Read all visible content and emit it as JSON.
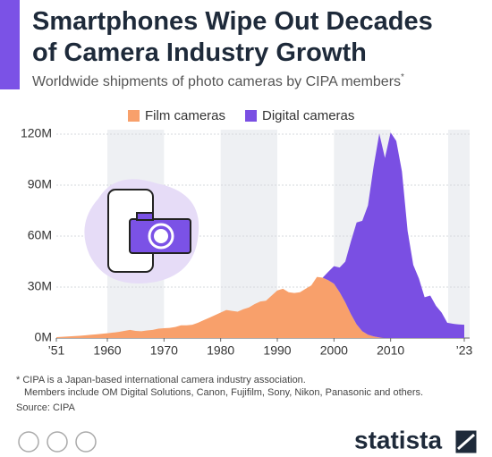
{
  "chart_data": {
    "type": "stacked_area",
    "title_lines": [
      "Smartphones Wipe Out Decades",
      "of Camera Industry Growth"
    ],
    "subtitle": "Worldwide shipments of photo cameras by CIPA members",
    "subtitle_mark": "*",
    "x": [
      1951,
      1952,
      1953,
      1954,
      1955,
      1956,
      1957,
      1958,
      1959,
      1960,
      1961,
      1962,
      1963,
      1964,
      1965,
      1966,
      1967,
      1968,
      1969,
      1970,
      1971,
      1972,
      1973,
      1974,
      1975,
      1976,
      1977,
      1978,
      1979,
      1980,
      1981,
      1982,
      1983,
      1984,
      1985,
      1986,
      1987,
      1988,
      1989,
      1990,
      1991,
      1992,
      1993,
      1994,
      1995,
      1996,
      1997,
      1998,
      1999,
      2000,
      2001,
      2002,
      2003,
      2004,
      2005,
      2006,
      2007,
      2008,
      2009,
      2010,
      2011,
      2012,
      2013,
      2014,
      2015,
      2016,
      2017,
      2018,
      2019,
      2020,
      2021,
      2022,
      2023
    ],
    "series": [
      {
        "name": "Film cameras",
        "color": "#f8a06b",
        "values": [
          0.5,
          0.7,
          0.9,
          1.1,
          1.3,
          1.6,
          1.9,
          2.2,
          2.5,
          2.8,
          3.2,
          3.6,
          4.2,
          4.8,
          4.2,
          4.0,
          4.5,
          4.8,
          5.5,
          5.8,
          6.0,
          6.5,
          7.5,
          7.5,
          7.8,
          9,
          10.5,
          12,
          13.5,
          15,
          16.5,
          16,
          15.5,
          17,
          18,
          20,
          21.5,
          22,
          25,
          28,
          29,
          27,
          26.5,
          27,
          29,
          31,
          36,
          35.5,
          34,
          32,
          27,
          21,
          14,
          8,
          4,
          2,
          1,
          0.3,
          0,
          0,
          0,
          0,
          0,
          0,
          0,
          0,
          0,
          0,
          0,
          0,
          0,
          0,
          0
        ]
      },
      {
        "name": "Digital cameras",
        "color": "#7a4fe3",
        "values": [
          0,
          0,
          0,
          0,
          0,
          0,
          0,
          0,
          0,
          0,
          0,
          0,
          0,
          0,
          0,
          0,
          0,
          0,
          0,
          0,
          0,
          0,
          0,
          0,
          0,
          0,
          0,
          0,
          0,
          0,
          0,
          0,
          0,
          0,
          0,
          0,
          0,
          0,
          0,
          0,
          0,
          0,
          0,
          0,
          0,
          0,
          0,
          0,
          5,
          10.3,
          14.5,
          24,
          43,
          60,
          65,
          76,
          100,
          120,
          106,
          121,
          116,
          98,
          63,
          43,
          35,
          24,
          25,
          19,
          15,
          9,
          8.4,
          8,
          7.8
        ]
      }
    ],
    "xlim": [
      1951,
      2023
    ],
    "xticks": [
      {
        "value": 1951,
        "label": "’51"
      },
      1960,
      1970,
      1980,
      1990,
      2000,
      2010,
      {
        "value": 2023,
        "label": "’23"
      }
    ],
    "ylim": [
      0,
      120
    ],
    "yticks": [
      {
        "value": 0,
        "label": "0M"
      },
      {
        "value": 30,
        "label": "30M"
      },
      {
        "value": 60,
        "label": "60M"
      },
      {
        "value": 90,
        "label": "90M"
      },
      {
        "value": 120,
        "label": "120M"
      }
    ],
    "grid": true,
    "footnote_lines": [
      "* CIPA is a Japan-based international camera industry association.",
      "Members include OM Digital Solutions, Canon, Fujifilm, Sony, Nikon, Panasonic and others."
    ],
    "source": "Source: CIPA",
    "brand": "statista"
  }
}
